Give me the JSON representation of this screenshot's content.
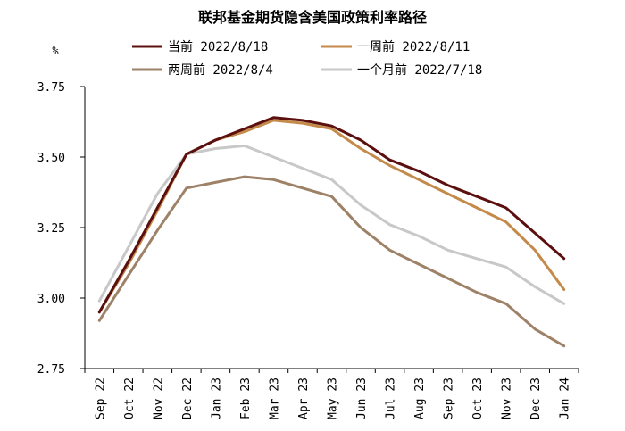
{
  "chart_data": {
    "type": "line",
    "title": "联邦基金期货隐含美国政策利率路径",
    "unit": "%",
    "ylim": [
      2.75,
      3.75
    ],
    "yticks": [
      "3.75",
      "3.50",
      "3.25",
      "3.00",
      "2.75"
    ],
    "ytick_values": [
      3.75,
      3.5,
      3.25,
      3.0,
      2.75
    ],
    "grid": false,
    "legend_position": "top",
    "categories": [
      "Sep 22",
      "Oct 22",
      "Nov 22",
      "Dec 22",
      "Jan 23",
      "Feb 23",
      "Mar 23",
      "Apr 23",
      "May 23",
      "Jun 23",
      "Jul 23",
      "Aug 23",
      "Sep 23",
      "Oct 23",
      "Nov 23",
      "Dec 23",
      "Jan 24"
    ],
    "series": [
      {
        "name": "当前 2022/8/18",
        "color": "#5c0f0f",
        "values": [
          2.95,
          3.13,
          3.32,
          3.51,
          3.56,
          3.6,
          3.64,
          3.63,
          3.61,
          3.56,
          3.49,
          3.45,
          3.4,
          3.36,
          3.32,
          3.23,
          3.14
        ]
      },
      {
        "name": "一周前 2022/8/11",
        "color": "#c48a4a",
        "values": [
          2.95,
          3.12,
          3.31,
          3.51,
          3.56,
          3.59,
          3.63,
          3.62,
          3.6,
          3.53,
          3.47,
          3.42,
          3.37,
          3.32,
          3.27,
          3.17,
          3.03
        ]
      },
      {
        "name": "两周前 2022/8/4",
        "color": "#9e8268",
        "values": [
          2.92,
          3.08,
          3.24,
          3.39,
          3.41,
          3.43,
          3.42,
          3.39,
          3.36,
          3.25,
          3.17,
          3.12,
          3.07,
          3.02,
          2.98,
          2.89,
          2.83
        ]
      },
      {
        "name": "一个月前 2022/7/18",
        "color": "#c8c8c8",
        "values": [
          2.99,
          3.18,
          3.37,
          3.51,
          3.53,
          3.54,
          3.5,
          3.46,
          3.42,
          3.33,
          3.26,
          3.22,
          3.17,
          3.14,
          3.11,
          3.04,
          2.98
        ]
      }
    ]
  }
}
